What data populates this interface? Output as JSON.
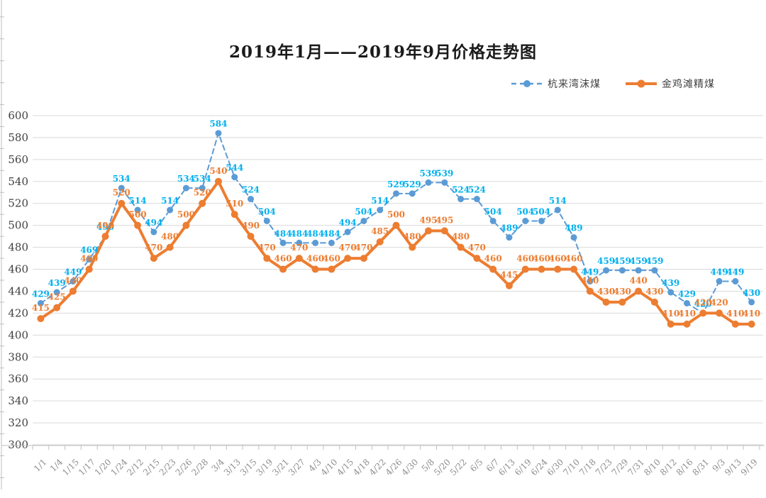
{
  "chart_data": {
    "type": "line",
    "title": "2019年1月——2019年9月价格走势图",
    "categories": [
      "1/1",
      "1/4",
      "1/15",
      "1/17",
      "1/20",
      "1/24",
      "2/12",
      "2/15",
      "2/23",
      "2/26",
      "2/28",
      "3/4",
      "3/13",
      "3/15",
      "3/19",
      "3/21",
      "3/27",
      "4/3",
      "4/10",
      "4/15",
      "4/18",
      "4/22",
      "4/26",
      "4/30",
      "5/8",
      "5/20",
      "5/22",
      "6/5",
      "6/7",
      "6/13",
      "6/19",
      "6/24",
      "6/30",
      "7/10",
      "7/18",
      "7/23",
      "7/29",
      "7/31",
      "8/10",
      "8/12",
      "8/16",
      "8/31",
      "9/3",
      "9/13",
      "9/19"
    ],
    "series": [
      {
        "name": "杭来湾沫煤",
        "line_style": "dashed",
        "color": "#5B9BD5",
        "label_color": "#00B0F0",
        "values": [
          429,
          439,
          449,
          469,
          490,
          534,
          514,
          494,
          514,
          534,
          534,
          584,
          544,
          524,
          504,
          484,
          484,
          484,
          484,
          494,
          504,
          514,
          529,
          529,
          539,
          539,
          524,
          524,
          504,
          489,
          504,
          504,
          514,
          489,
          449,
          459,
          459,
          459,
          459,
          439,
          429,
          420,
          449,
          449,
          430
        ]
      },
      {
        "name": "金鸡滩精煤",
        "line_style": "solid",
        "color": "#ED7D31",
        "label_color": "#ED7D31",
        "values": [
          415,
          425,
          440,
          460,
          490,
          520,
          500,
          470,
          480,
          500,
          520,
          540,
          510,
          490,
          470,
          460,
          470,
          460,
          460,
          470,
          470,
          485,
          500,
          480,
          495,
          495,
          480,
          470,
          460,
          445,
          460,
          460,
          460,
          460,
          440,
          430,
          430,
          440,
          430,
          410,
          410,
          420,
          420,
          410,
          410
        ]
      }
    ],
    "ylim": [
      300,
      600
    ],
    "ystep": 20,
    "y_ticks": [
      600,
      580,
      560,
      540,
      520,
      500,
      480,
      460,
      440,
      420,
      400,
      380,
      360,
      340,
      320,
      300
    ],
    "grid": true,
    "legend_position": "top-right",
    "data_labels": true,
    "colors": {
      "grid": "#D9D9D9",
      "axis": "#BFBFBF",
      "y_tick_label": "#404040",
      "x_tick_label": "#8C8C8C",
      "title": "#1a1a1a"
    }
  }
}
